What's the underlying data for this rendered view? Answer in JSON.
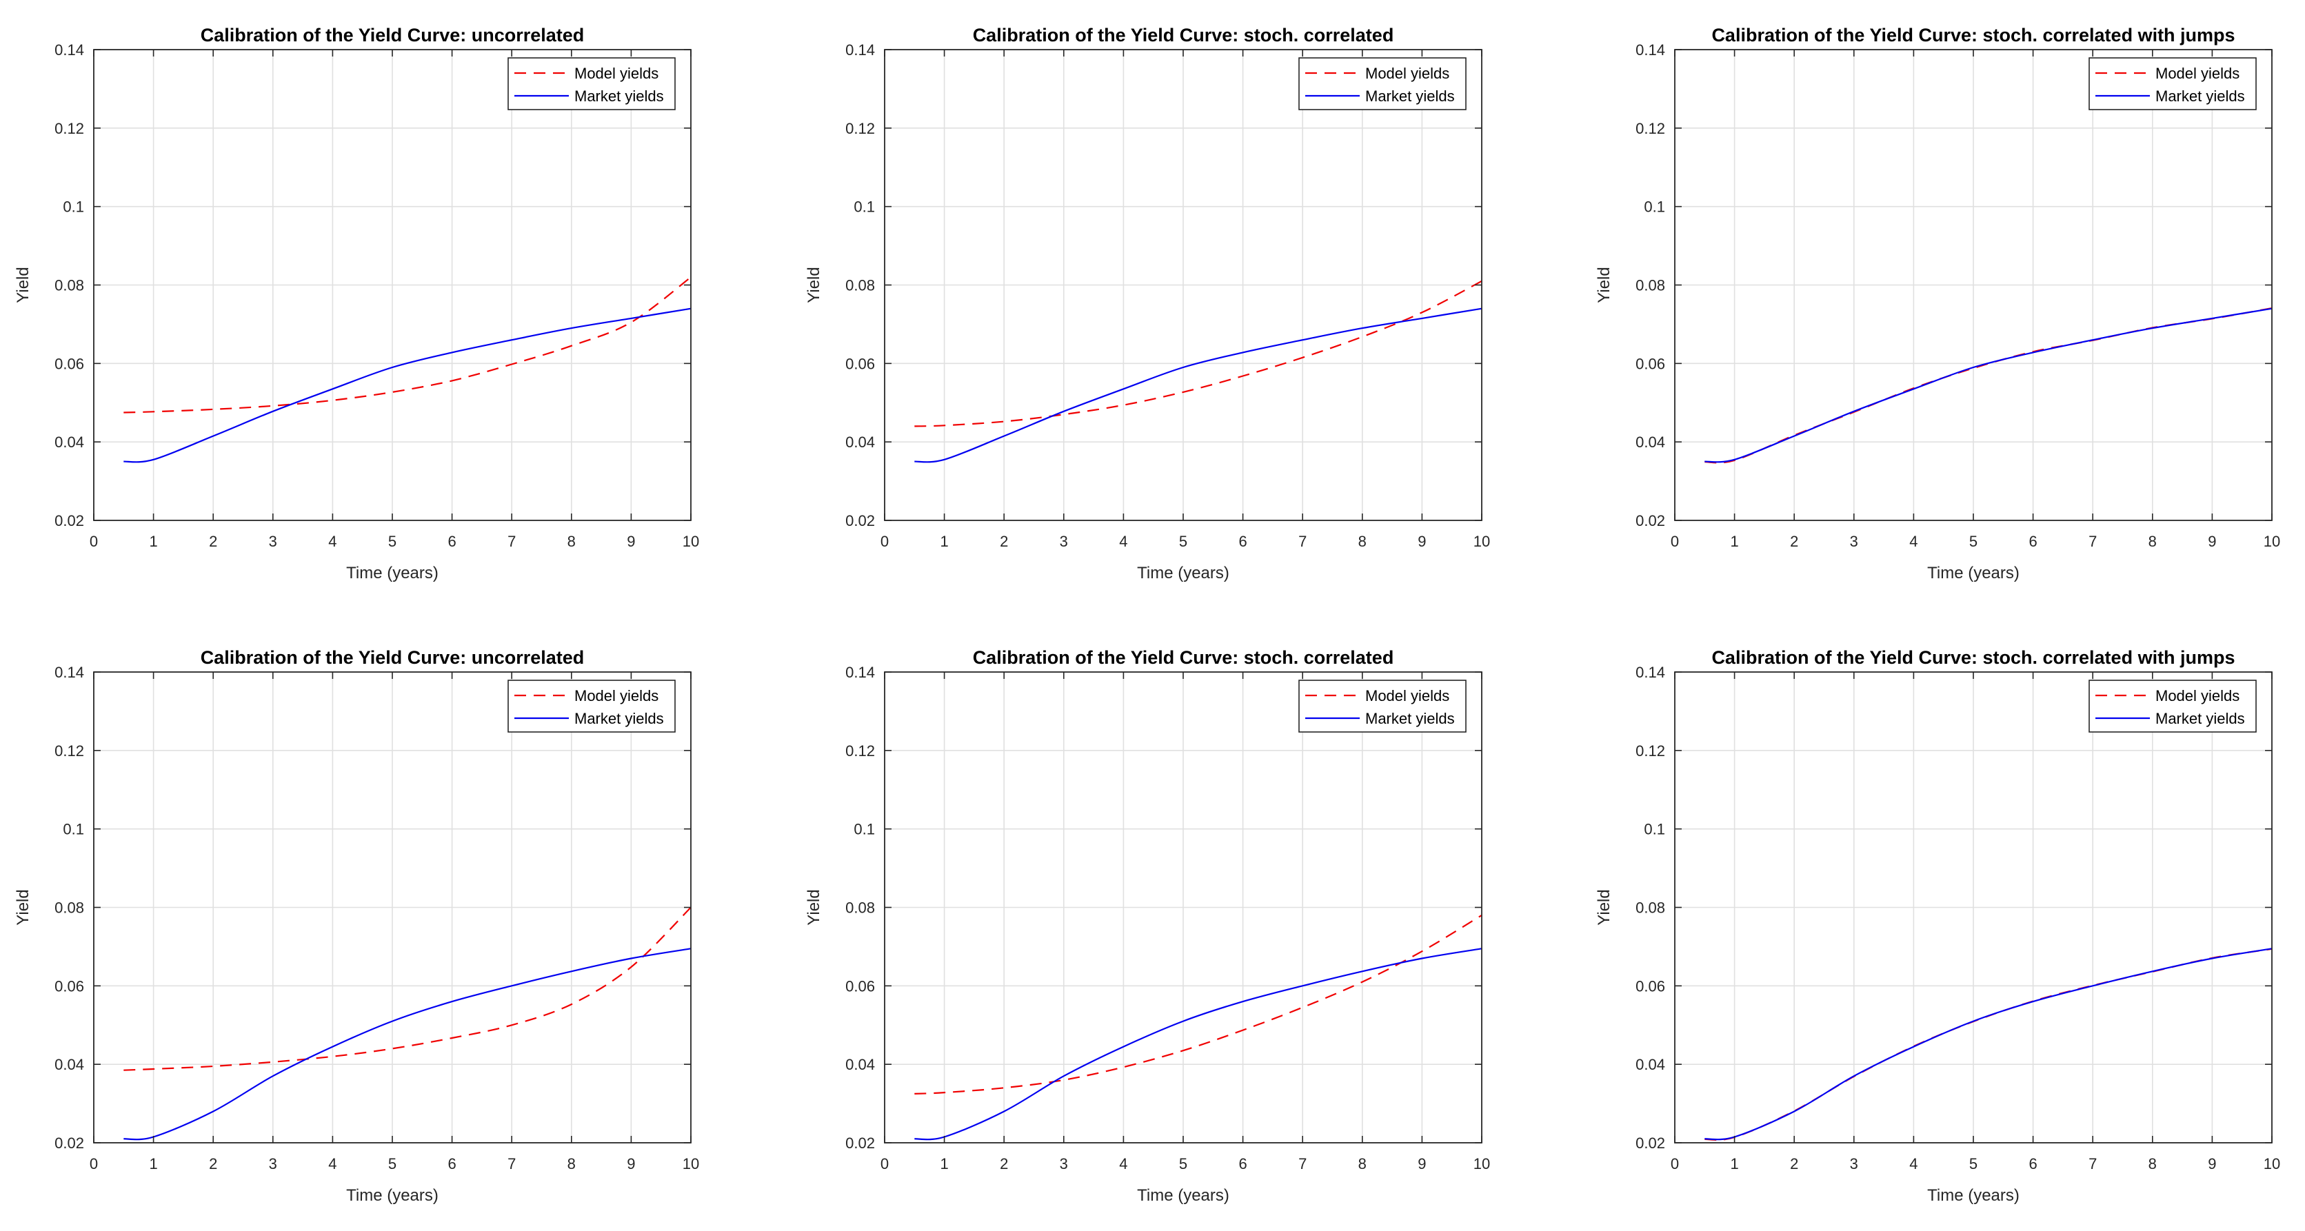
{
  "figure": {
    "background": "#ffffff",
    "grid_rows": 2,
    "grid_cols": 3
  },
  "colors": {
    "model": "#f00000",
    "market": "#0000f0",
    "grid": "#e0e0e0",
    "axis": "#262626",
    "legend_border": "#262626",
    "legend_bg": "#ffffff"
  },
  "chart_data": [
    {
      "type": "line",
      "title": "Calibration of the Yield Curve: uncorrelated",
      "xlabel": "Time (years)",
      "ylabel": "Yield",
      "xlim": [
        0,
        10
      ],
      "ylim": [
        0.02,
        0.14
      ],
      "xticks": [
        0,
        1,
        2,
        3,
        4,
        5,
        6,
        7,
        8,
        9,
        10
      ],
      "xtick_labels": [
        "0",
        "1",
        "2",
        "3",
        "4",
        "5",
        "6",
        "7",
        "8",
        "9",
        "10"
      ],
      "yticks": [
        0.02,
        0.04,
        0.06,
        0.08,
        0.1,
        0.12,
        0.14
      ],
      "ytick_labels": [
        "0.02",
        "0.04",
        "0.06",
        "0.08",
        "0.1",
        "0.12",
        "0.14"
      ],
      "grid": true,
      "legend": {
        "position": "top-right",
        "entries": [
          {
            "label": "Model yields",
            "color": "model",
            "style": "dashed"
          },
          {
            "label": "Market yields",
            "color": "market",
            "style": "solid"
          }
        ]
      },
      "series": [
        {
          "name": "Model yields",
          "color": "model",
          "style": "dashed",
          "x": [
            0.5,
            1,
            2,
            3,
            4,
            5,
            6,
            7,
            8,
            9,
            10
          ],
          "y": [
            0.0475,
            0.0477,
            0.0483,
            0.0492,
            0.0506,
            0.0527,
            0.0556,
            0.0598,
            0.0645,
            0.0705,
            0.082
          ]
        },
        {
          "name": "Market yields",
          "color": "market",
          "style": "solid",
          "x": [
            0.5,
            1,
            2,
            3,
            4,
            5,
            6,
            7,
            8,
            9,
            10
          ],
          "y": [
            0.035,
            0.0355,
            0.0415,
            0.0478,
            0.0535,
            0.059,
            0.0628,
            0.066,
            0.069,
            0.0715,
            0.074
          ]
        }
      ]
    },
    {
      "type": "line",
      "title": "Calibration of the Yield Curve: stoch. correlated",
      "xlabel": "Time (years)",
      "ylabel": "Yield",
      "xlim": [
        0,
        10
      ],
      "ylim": [
        0.02,
        0.14
      ],
      "xticks": [
        0,
        1,
        2,
        3,
        4,
        5,
        6,
        7,
        8,
        9,
        10
      ],
      "xtick_labels": [
        "0",
        "1",
        "2",
        "3",
        "4",
        "5",
        "6",
        "7",
        "8",
        "9",
        "10"
      ],
      "yticks": [
        0.02,
        0.04,
        0.06,
        0.08,
        0.1,
        0.12,
        0.14
      ],
      "ytick_labels": [
        "0.02",
        "0.04",
        "0.06",
        "0.08",
        "0.1",
        "0.12",
        "0.14"
      ],
      "grid": true,
      "legend": {
        "position": "top-right",
        "entries": [
          {
            "label": "Model yields",
            "color": "model",
            "style": "dashed"
          },
          {
            "label": "Market yields",
            "color": "market",
            "style": "solid"
          }
        ]
      },
      "series": [
        {
          "name": "Model yields",
          "color": "model",
          "style": "dashed",
          "x": [
            0.5,
            1,
            2,
            3,
            4,
            5,
            6,
            7,
            8,
            9,
            10
          ],
          "y": [
            0.044,
            0.0442,
            0.0452,
            0.047,
            0.0494,
            0.0527,
            0.0568,
            0.0615,
            0.0668,
            0.073,
            0.081
          ]
        },
        {
          "name": "Market yields",
          "color": "market",
          "style": "solid",
          "x": [
            0.5,
            1,
            2,
            3,
            4,
            5,
            6,
            7,
            8,
            9,
            10
          ],
          "y": [
            0.035,
            0.0355,
            0.0415,
            0.0478,
            0.0535,
            0.059,
            0.0628,
            0.066,
            0.069,
            0.0715,
            0.074
          ]
        }
      ]
    },
    {
      "type": "line",
      "title": "Calibration of the Yield Curve: stoch. correlated with jumps",
      "xlabel": "Time (years)",
      "ylabel": "Yield",
      "xlim": [
        0,
        10
      ],
      "ylim": [
        0.02,
        0.14
      ],
      "xticks": [
        0,
        1,
        2,
        3,
        4,
        5,
        6,
        7,
        8,
        9,
        10
      ],
      "xtick_labels": [
        "0",
        "1",
        "2",
        "3",
        "4",
        "5",
        "6",
        "7",
        "8",
        "9",
        "10"
      ],
      "yticks": [
        0.02,
        0.04,
        0.06,
        0.08,
        0.1,
        0.12,
        0.14
      ],
      "ytick_labels": [
        "0.02",
        "0.04",
        "0.06",
        "0.08",
        "0.1",
        "0.12",
        "0.14"
      ],
      "grid": true,
      "legend": {
        "position": "top-right",
        "entries": [
          {
            "label": "Model yields",
            "color": "model",
            "style": "dashed"
          },
          {
            "label": "Market yields",
            "color": "market",
            "style": "solid"
          }
        ]
      },
      "series": [
        {
          "name": "Model yields",
          "color": "model",
          "style": "dashed",
          "x": [
            0.5,
            1,
            2,
            3,
            4,
            5,
            6,
            7,
            8,
            9,
            10
          ],
          "y": [
            0.0349,
            0.0353,
            0.0417,
            0.0476,
            0.0537,
            0.0588,
            0.063,
            0.0659,
            0.0691,
            0.0714,
            0.0741
          ]
        },
        {
          "name": "Market yields",
          "color": "market",
          "style": "solid",
          "x": [
            0.5,
            1,
            2,
            3,
            4,
            5,
            6,
            7,
            8,
            9,
            10
          ],
          "y": [
            0.035,
            0.0355,
            0.0415,
            0.0478,
            0.0535,
            0.059,
            0.0628,
            0.066,
            0.069,
            0.0715,
            0.074
          ]
        }
      ]
    },
    {
      "type": "line",
      "title": "Calibration of the Yield Curve: uncorrelated",
      "xlabel": "Time (years)",
      "ylabel": "Yield",
      "xlim": [
        0,
        10
      ],
      "ylim": [
        0.02,
        0.14
      ],
      "xticks": [
        0,
        1,
        2,
        3,
        4,
        5,
        6,
        7,
        8,
        9,
        10
      ],
      "xtick_labels": [
        "0",
        "1",
        "2",
        "3",
        "4",
        "5",
        "6",
        "7",
        "8",
        "9",
        "10"
      ],
      "yticks": [
        0.02,
        0.04,
        0.06,
        0.08,
        0.1,
        0.12,
        0.14
      ],
      "ytick_labels": [
        "0.02",
        "0.04",
        "0.06",
        "0.08",
        "0.1",
        "0.12",
        "0.14"
      ],
      "grid": true,
      "legend": {
        "position": "top-right",
        "entries": [
          {
            "label": "Model yields",
            "color": "model",
            "style": "dashed"
          },
          {
            "label": "Market yields",
            "color": "market",
            "style": "solid"
          }
        ]
      },
      "series": [
        {
          "name": "Model yields",
          "color": "model",
          "style": "dashed",
          "x": [
            0.5,
            1,
            2,
            3,
            4,
            5,
            6,
            7,
            8,
            9,
            10
          ],
          "y": [
            0.0385,
            0.0388,
            0.0395,
            0.0406,
            0.042,
            0.044,
            0.0467,
            0.05,
            0.0553,
            0.0648,
            0.08
          ]
        },
        {
          "name": "Market yields",
          "color": "market",
          "style": "solid",
          "x": [
            0.5,
            1,
            2,
            3,
            4,
            5,
            6,
            7,
            8,
            9,
            10
          ],
          "y": [
            0.021,
            0.0215,
            0.028,
            0.037,
            0.0445,
            0.051,
            0.056,
            0.06,
            0.0637,
            0.067,
            0.0695
          ]
        }
      ]
    },
    {
      "type": "line",
      "title": "Calibration of the Yield Curve: stoch. correlated",
      "xlabel": "Time (years)",
      "ylabel": "Yield",
      "xlim": [
        0,
        10
      ],
      "ylim": [
        0.02,
        0.14
      ],
      "xticks": [
        0,
        1,
        2,
        3,
        4,
        5,
        6,
        7,
        8,
        9,
        10
      ],
      "xtick_labels": [
        "0",
        "1",
        "2",
        "3",
        "4",
        "5",
        "6",
        "7",
        "8",
        "9",
        "10"
      ],
      "yticks": [
        0.02,
        0.04,
        0.06,
        0.08,
        0.1,
        0.12,
        0.14
      ],
      "ytick_labels": [
        "0.02",
        "0.04",
        "0.06",
        "0.08",
        "0.1",
        "0.12",
        "0.14"
      ],
      "grid": true,
      "legend": {
        "position": "top-right",
        "entries": [
          {
            "label": "Model yields",
            "color": "model",
            "style": "dashed"
          },
          {
            "label": "Market yields",
            "color": "market",
            "style": "solid"
          }
        ]
      },
      "series": [
        {
          "name": "Model yields",
          "color": "model",
          "style": "dashed",
          "x": [
            0.5,
            1,
            2,
            3,
            4,
            5,
            6,
            7,
            8,
            9,
            10
          ],
          "y": [
            0.0325,
            0.0328,
            0.034,
            0.036,
            0.0393,
            0.0435,
            0.0487,
            0.0545,
            0.061,
            0.0688,
            0.078
          ]
        },
        {
          "name": "Market yields",
          "color": "market",
          "style": "solid",
          "x": [
            0.5,
            1,
            2,
            3,
            4,
            5,
            6,
            7,
            8,
            9,
            10
          ],
          "y": [
            0.021,
            0.0215,
            0.028,
            0.037,
            0.0445,
            0.051,
            0.056,
            0.06,
            0.0637,
            0.067,
            0.0695
          ]
        }
      ]
    },
    {
      "type": "line",
      "title": "Calibration of the Yield Curve: stoch. correlated with jumps",
      "xlabel": "Time (years)",
      "ylabel": "Yield",
      "xlim": [
        0,
        10
      ],
      "ylim": [
        0.02,
        0.14
      ],
      "xticks": [
        0,
        1,
        2,
        3,
        4,
        5,
        6,
        7,
        8,
        9,
        10
      ],
      "xtick_labels": [
        "0",
        "1",
        "2",
        "3",
        "4",
        "5",
        "6",
        "7",
        "8",
        "9",
        "10"
      ],
      "yticks": [
        0.02,
        0.04,
        0.06,
        0.08,
        0.1,
        0.12,
        0.14
      ],
      "ytick_labels": [
        "0.02",
        "0.04",
        "0.06",
        "0.08",
        "0.1",
        "0.12",
        "0.14"
      ],
      "grid": true,
      "legend": {
        "position": "top-right",
        "entries": [
          {
            "label": "Model yields",
            "color": "model",
            "style": "dashed"
          },
          {
            "label": "Market yields",
            "color": "market",
            "style": "solid"
          }
        ]
      },
      "series": [
        {
          "name": "Model yields",
          "color": "model",
          "style": "dashed",
          "x": [
            0.5,
            1,
            2,
            3,
            4,
            5,
            6,
            7,
            8,
            9,
            10
          ],
          "y": [
            0.0209,
            0.0214,
            0.0281,
            0.0369,
            0.0446,
            0.0509,
            0.0561,
            0.0601,
            0.0636,
            0.0671,
            0.0694
          ]
        },
        {
          "name": "Market yields",
          "color": "market",
          "style": "solid",
          "x": [
            0.5,
            1,
            2,
            3,
            4,
            5,
            6,
            7,
            8,
            9,
            10
          ],
          "y": [
            0.021,
            0.0215,
            0.028,
            0.037,
            0.0445,
            0.051,
            0.056,
            0.06,
            0.0637,
            0.067,
            0.0695
          ]
        }
      ]
    }
  ]
}
